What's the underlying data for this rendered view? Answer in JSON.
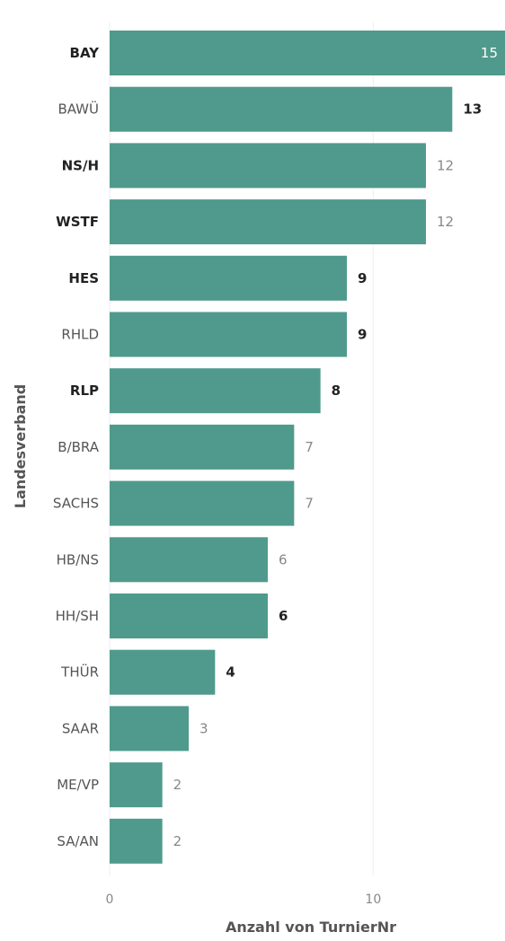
{
  "chart_data": {
    "type": "bar",
    "orientation": "horizontal",
    "categories": [
      "BAY",
      "BAWÜ",
      "NS/H",
      "WSTF",
      "HES",
      "RHLD",
      "RLP",
      "B/BRA",
      "SACHS",
      "HB/NS",
      "HH/SH",
      "THÜR",
      "SAAR",
      "ME/VP",
      "SA/AN"
    ],
    "values": [
      15,
      13,
      12,
      12,
      9,
      9,
      8,
      7,
      7,
      6,
      6,
      4,
      3,
      2,
      2
    ],
    "bold_categories": [
      "BAY",
      "NS/H",
      "WSTF",
      "HES",
      "RLP"
    ],
    "bold_values": [
      "BAWÜ",
      "HES",
      "RHLD",
      "RLP",
      "HH/SH",
      "THÜR"
    ],
    "xlabel": "Anzahl von TurnierNr",
    "ylabel": "Landesverband",
    "xticks": [
      0,
      10
    ],
    "xlim": [
      0,
      15
    ],
    "bar_color": "#4f9a8c",
    "grid": true
  }
}
